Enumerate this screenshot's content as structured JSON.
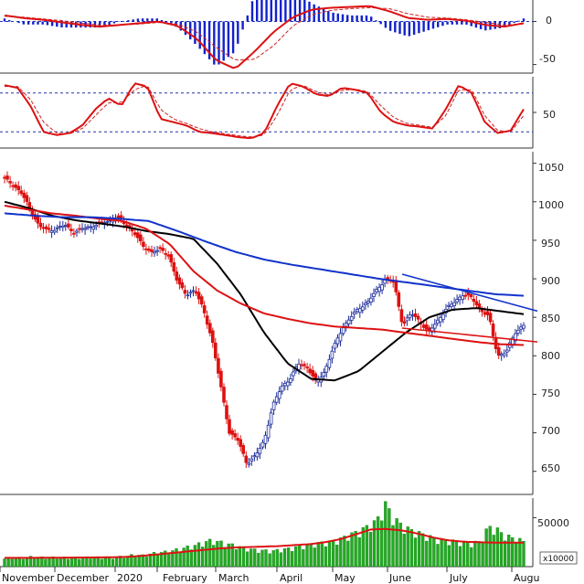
{
  "chart_data": {
    "type": "candlestick",
    "x_axis": {
      "months": [
        "November",
        "December",
        "2020",
        "February",
        "March",
        "April",
        "May",
        "June",
        "July",
        "Augu"
      ]
    },
    "macd_panel": {
      "yticks": [
        "0",
        "-50"
      ],
      "ylim": [
        -60,
        25
      ],
      "zero_line": true
    },
    "stoch_panel": {
      "yticks": [
        "50"
      ],
      "ylim": [
        -5,
        105
      ],
      "reference_lines": [
        80,
        20
      ]
    },
    "price_panel": {
      "yticks": [
        "1050",
        "1000",
        "950",
        "900",
        "850",
        "800",
        "750",
        "700",
        "650"
      ],
      "ylim": [
        620,
        1065
      ],
      "close_approx": [
        1030,
        1022,
        1010,
        990,
        968,
        963,
        965,
        970,
        960,
        965,
        968,
        972,
        975,
        980,
        970,
        960,
        942,
        935,
        938,
        930,
        895,
        880,
        885,
        860,
        820,
        760,
        700,
        690,
        660,
        670,
        690,
        735,
        760,
        770,
        790,
        785,
        765,
        780,
        810,
        835,
        850,
        862,
        870,
        885,
        900,
        895,
        840,
        855,
        845,
        830,
        845,
        860,
        870,
        880,
        875,
        860,
        850,
        800,
        805,
        830,
        840
      ],
      "moving_averages": [
        {
          "color": "#000000",
          "points": [
            1000,
            992,
            982,
            976,
            972,
            968,
            962,
            958,
            952,
            920,
            880,
            830,
            790,
            770,
            768,
            780,
            805,
            830,
            850,
            860,
            862,
            858,
            854
          ]
        },
        {
          "color": "#dd1111",
          "points": [
            995,
            990,
            985,
            982,
            978,
            975,
            965,
            945,
            910,
            885,
            868,
            855,
            848,
            842,
            838,
            836,
            834,
            830,
            826,
            822,
            818,
            815,
            814
          ]
        },
        {
          "color": "#1133cc",
          "points": [
            985,
            982,
            980,
            980,
            978,
            975,
            962,
            948,
            935,
            925,
            918,
            912,
            906,
            900,
            895,
            890,
            885,
            880,
            878
          ]
        }
      ],
      "trendlines": [
        {
          "color": "#1133cc",
          "from": 906,
          "to": 858
        },
        {
          "color": "#dd1111",
          "from": 836,
          "to": 818
        }
      ]
    },
    "volume_panel": {
      "yticks": [
        "50000"
      ],
      "unit": "x10000",
      "ylim": [
        0,
        70000
      ],
      "values": [
        8000,
        9000,
        8500,
        9500,
        9000,
        8800,
        9200,
        9000,
        8700,
        9100,
        9300,
        9000,
        8800,
        9500,
        10000,
        12000,
        11000,
        13000,
        14000,
        15000,
        17000,
        19000,
        21000,
        24000,
        26000,
        24000,
        22000,
        20000,
        18000,
        16500,
        16000,
        15500,
        17000,
        18000,
        20000,
        21000,
        23000,
        24000,
        25000,
        28000,
        32000,
        35000,
        40000,
        45000,
        62000,
        48000,
        40000,
        36000,
        33000,
        30000,
        27000,
        26000,
        25000,
        24000,
        23000,
        25000,
        40000,
        36000,
        30000,
        28000,
        25000
      ],
      "ma_values": [
        9000,
        8950,
        9000,
        9100,
        9200,
        9300,
        9400,
        9600,
        10000,
        11000,
        12500,
        14000,
        15500,
        17000,
        18500,
        19500,
        20000,
        20500,
        21000,
        22000,
        23000,
        25000,
        28000,
        33000,
        38000,
        38500,
        37000,
        34000,
        30000,
        27000,
        25500,
        25000,
        24500,
        24500,
        24500
      ]
    }
  }
}
